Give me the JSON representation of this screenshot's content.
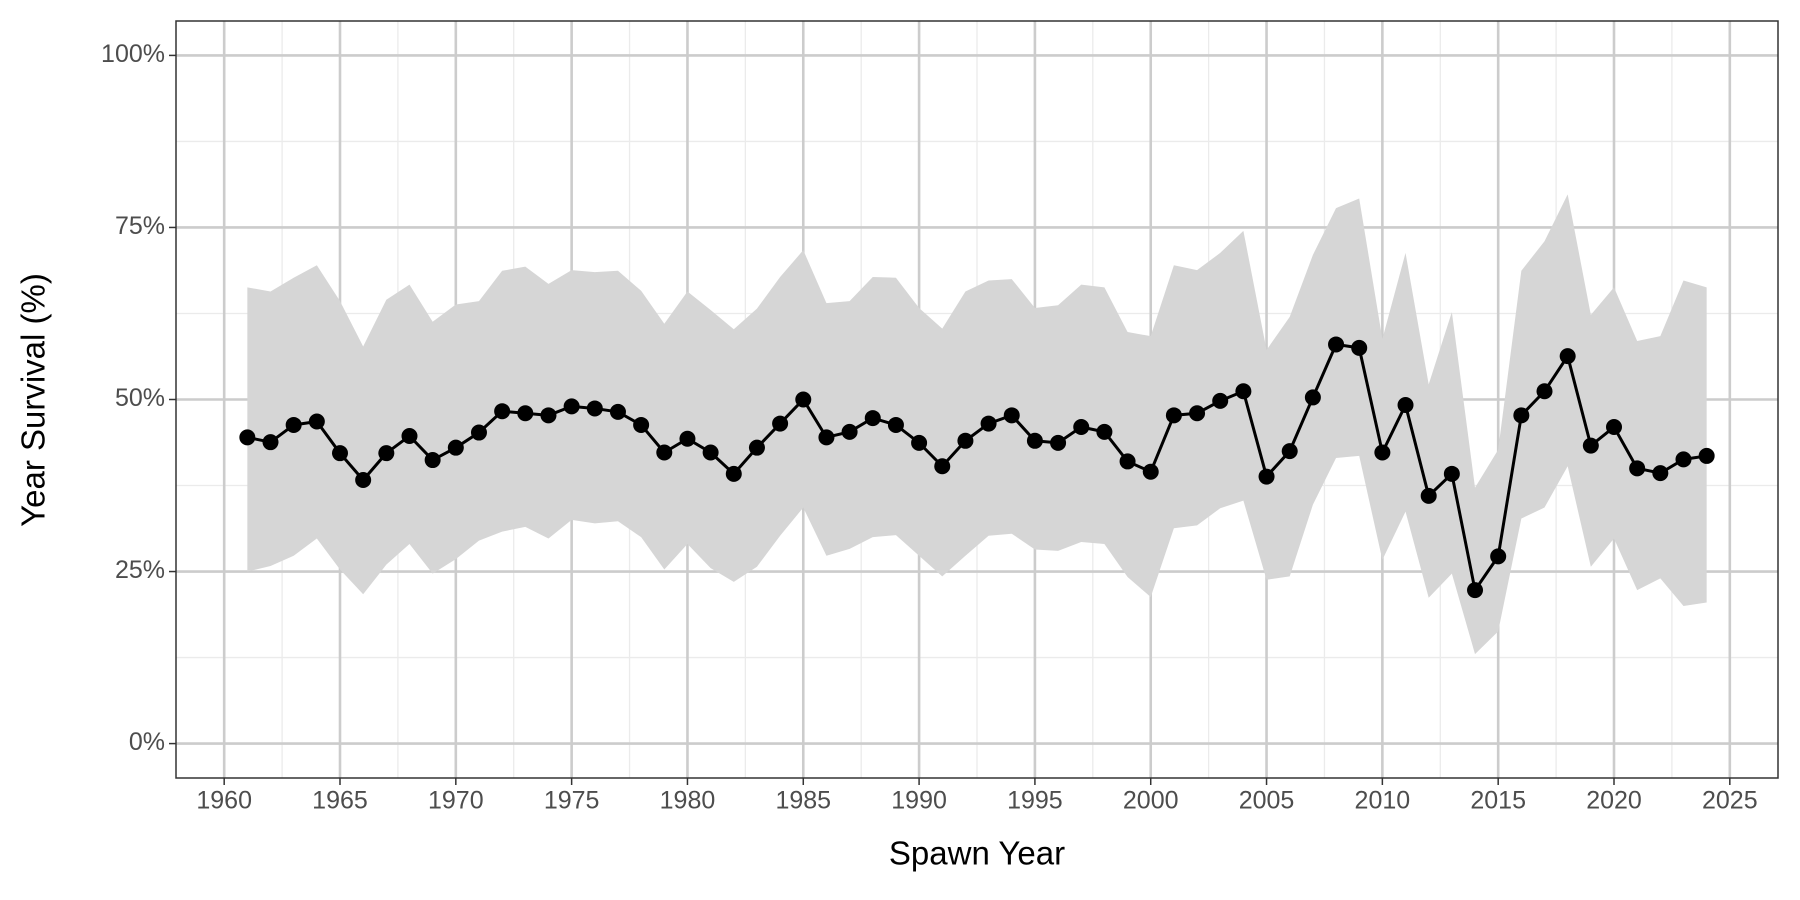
{
  "chart_data": {
    "type": "line",
    "x_label": "Spawn Year",
    "y_label": "Year Survival (%)",
    "x": [
      1961,
      1962,
      1963,
      1964,
      1965,
      1966,
      1967,
      1968,
      1969,
      1970,
      1971,
      1972,
      1973,
      1974,
      1975,
      1976,
      1977,
      1978,
      1979,
      1980,
      1981,
      1982,
      1983,
      1984,
      1985,
      1986,
      1987,
      1988,
      1989,
      1990,
      1991,
      1992,
      1993,
      1994,
      1995,
      1996,
      1997,
      1998,
      1999,
      2000,
      2001,
      2002,
      2003,
      2004,
      2005,
      2006,
      2007,
      2008,
      2009,
      2010,
      2011,
      2012,
      2013,
      2014,
      2015,
      2016,
      2017,
      2018,
      2019,
      2020,
      2021,
      2022,
      2023,
      2024
    ],
    "values": [
      44.5,
      43.8,
      46.3,
      46.8,
      42.2,
      38.3,
      42.2,
      44.7,
      41.2,
      43,
      45.2,
      48.3,
      48,
      47.7,
      49,
      48.7,
      48.2,
      46.3,
      42.3,
      44.3,
      42.3,
      39.2,
      43,
      46.5,
      50,
      44.5,
      45.3,
      47.3,
      46.3,
      43.7,
      40.3,
      44,
      46.5,
      47.7,
      44,
      43.7,
      46,
      45.3,
      41,
      39.5,
      47.7,
      48,
      49.8,
      51.2,
      38.8,
      42.5,
      50.3,
      58,
      57.5,
      42.3,
      49.2,
      36,
      39.2,
      22.3,
      27.2,
      47.7,
      51.2,
      56.3,
      43.3,
      46,
      40,
      39.3,
      41.3,
      41.8
    ],
    "upper": [
      66.3,
      65.7,
      67.7,
      69.5,
      64.3,
      57.7,
      64.5,
      66.7,
      61.3,
      63.8,
      64.3,
      68.7,
      69.3,
      66.8,
      68.8,
      68.5,
      68.7,
      65.8,
      61,
      65.7,
      63,
      60.2,
      63.2,
      67.8,
      71.7,
      64,
      64.3,
      67.8,
      67.7,
      63.3,
      60.3,
      65.7,
      67.3,
      67.5,
      63.3,
      63.7,
      66.7,
      66.3,
      59.8,
      59.2,
      69.5,
      68.8,
      71.3,
      74.5,
      57.2,
      62,
      71,
      77.8,
      79.2,
      58.8,
      71.3,
      52.2,
      62.7,
      37.2,
      42.7,
      68.7,
      73,
      79.8,
      62.3,
      66.3,
      58.5,
      59.2,
      67.3,
      66.3
    ],
    "lower": [
      25,
      25.8,
      27.3,
      29.8,
      25.3,
      21.7,
      26,
      29,
      24.7,
      26.8,
      29.5,
      30.8,
      31.5,
      29.8,
      32.5,
      32,
      32.3,
      30,
      25.3,
      29,
      25.5,
      23.5,
      25.7,
      30.2,
      34.3,
      27.3,
      28.3,
      30,
      30.3,
      27.3,
      24.3,
      27.3,
      30.2,
      30.5,
      28.2,
      28,
      29.3,
      29,
      24.2,
      21.3,
      31.3,
      31.7,
      34.2,
      35.3,
      23.8,
      24.3,
      34.7,
      41.5,
      41.8,
      26.7,
      33.7,
      21.2,
      24.7,
      13,
      16.3,
      32.7,
      34.3,
      40.3,
      25.7,
      29.8,
      22.3,
      24,
      20,
      20.5
    ],
    "color": "#000000",
    "band_color": "#d6d6d6",
    "xlim": [
      1957.92,
      2027.08
    ],
    "xticks": [
      1960,
      1965,
      1970,
      1975,
      1980,
      1985,
      1990,
      1995,
      2000,
      2005,
      2010,
      2015,
      2020,
      2025
    ],
    "ylim": [
      -5,
      105
    ],
    "yticks": [
      {
        "value": 0,
        "label": "0%"
      },
      {
        "value": 25,
        "label": "25%"
      },
      {
        "value": 50,
        "label": "50%"
      },
      {
        "value": 75,
        "label": "75%"
      },
      {
        "value": 100,
        "label": "100%"
      }
    ],
    "grid": true
  }
}
